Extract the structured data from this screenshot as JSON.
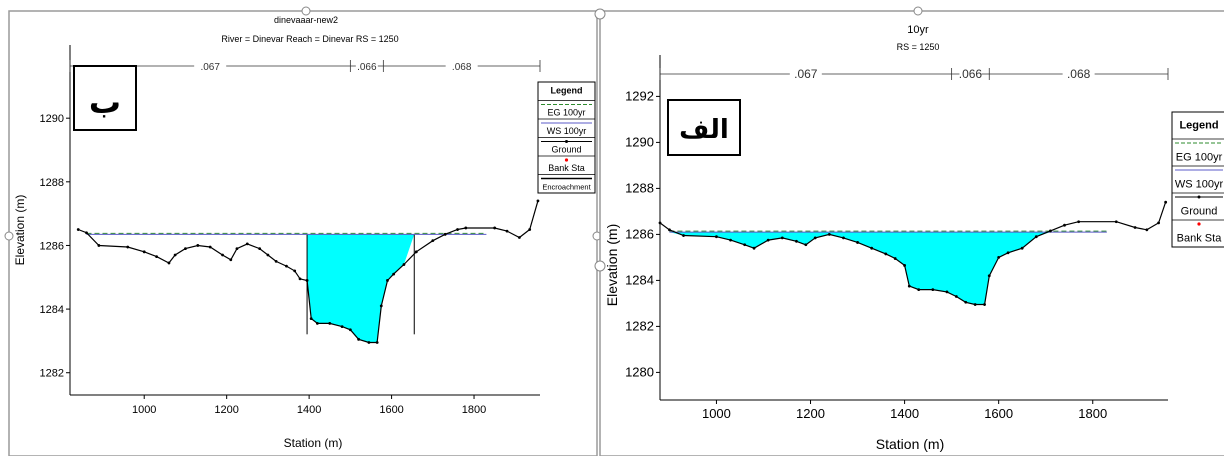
{
  "colors": {
    "water": "#00ffff",
    "ground": "#000000",
    "eg": "#2e8b2e",
    "ws": "#5b5bc8",
    "bank": "#ff0000",
    "frame": "#9a9a9a"
  },
  "chart_data": [
    {
      "type": "area",
      "panel_label": "ب",
      "title_lines": [
        "dinevaaar-new2",
        "River = Dinevar   Reach = Dinevar     RS = 1250"
      ],
      "xlabel": "Station (m)",
      "ylabel": "Elevation (m)",
      "xlim": [
        820,
        1960
      ],
      "ylim": [
        1281.3,
        1292.3
      ],
      "x_ticks": [
        1000,
        1200,
        1400,
        1600,
        1800
      ],
      "y_ticks": [
        1282,
        1284,
        1286,
        1288,
        1290
      ],
      "manning_labels": [
        ".067",
        ".066",
        ".068"
      ],
      "manning_breaks": [
        1500,
        1580
      ],
      "legend_title": "Legend",
      "legend_items": [
        "EG 100yr",
        "WS 100yr",
        "Ground",
        "Bank Sta",
        "Encroachment"
      ],
      "water_surface": 1286.35,
      "encroachment": [
        1395,
        1655
      ],
      "ground": [
        [
          840,
          1286.5
        ],
        [
          860,
          1286.4
        ],
        [
          890,
          1286.0
        ],
        [
          960,
          1285.95
        ],
        [
          1000,
          1285.8
        ],
        [
          1030,
          1285.65
        ],
        [
          1060,
          1285.45
        ],
        [
          1075,
          1285.7
        ],
        [
          1100,
          1285.9
        ],
        [
          1130,
          1286.0
        ],
        [
          1160,
          1285.95
        ],
        [
          1190,
          1285.7
        ],
        [
          1210,
          1285.55
        ],
        [
          1225,
          1285.9
        ],
        [
          1250,
          1286.05
        ],
        [
          1280,
          1285.9
        ],
        [
          1300,
          1285.7
        ],
        [
          1320,
          1285.5
        ],
        [
          1345,
          1285.35
        ],
        [
          1365,
          1285.2
        ],
        [
          1378,
          1284.95
        ],
        [
          1395,
          1284.9
        ],
        [
          1405,
          1283.7
        ],
        [
          1420,
          1283.55
        ],
        [
          1450,
          1283.55
        ],
        [
          1480,
          1283.45
        ],
        [
          1500,
          1283.35
        ],
        [
          1520,
          1283.05
        ],
        [
          1545,
          1282.95
        ],
        [
          1565,
          1282.95
        ],
        [
          1575,
          1284.1
        ],
        [
          1590,
          1284.9
        ],
        [
          1605,
          1285.1
        ],
        [
          1630,
          1285.4
        ],
        [
          1660,
          1285.8
        ],
        [
          1700,
          1286.15
        ],
        [
          1730,
          1286.35
        ],
        [
          1760,
          1286.5
        ],
        [
          1780,
          1286.55
        ],
        [
          1850,
          1286.55
        ],
        [
          1880,
          1286.45
        ],
        [
          1910,
          1286.25
        ],
        [
          1935,
          1286.5
        ],
        [
          1955,
          1287.4
        ]
      ]
    },
    {
      "type": "area",
      "panel_label": "الف",
      "title_lines": [
        "10yr",
        "RS = 1250"
      ],
      "xlabel": "Station (m)",
      "ylabel": "Elevation (m)",
      "xlim": [
        880,
        1960
      ],
      "ylim": [
        1278.8,
        1293.8
      ],
      "x_ticks": [
        1000,
        1200,
        1400,
        1600,
        1800
      ],
      "y_ticks": [
        1280,
        1282,
        1284,
        1286,
        1288,
        1290,
        1292
      ],
      "manning_labels": [
        ".067",
        ".066",
        ".068"
      ],
      "manning_breaks": [
        1500,
        1580
      ],
      "legend_title": "Legend",
      "legend_items": [
        "EG 100yr",
        "WS 100yr",
        "Ground",
        "Bank Sta"
      ],
      "water_surface": 1286.1,
      "ground": [
        [
          880,
          1286.5
        ],
        [
          900,
          1286.2
        ],
        [
          930,
          1285.95
        ],
        [
          1000,
          1285.9
        ],
        [
          1030,
          1285.75
        ],
        [
          1060,
          1285.55
        ],
        [
          1080,
          1285.4
        ],
        [
          1110,
          1285.75
        ],
        [
          1140,
          1285.85
        ],
        [
          1170,
          1285.7
        ],
        [
          1190,
          1285.55
        ],
        [
          1210,
          1285.85
        ],
        [
          1240,
          1286.0
        ],
        [
          1270,
          1285.85
        ],
        [
          1300,
          1285.65
        ],
        [
          1330,
          1285.4
        ],
        [
          1360,
          1285.15
        ],
        [
          1380,
          1284.95
        ],
        [
          1400,
          1284.65
        ],
        [
          1410,
          1283.75
        ],
        [
          1430,
          1283.6
        ],
        [
          1460,
          1283.6
        ],
        [
          1490,
          1283.5
        ],
        [
          1510,
          1283.3
        ],
        [
          1530,
          1283.05
        ],
        [
          1550,
          1282.95
        ],
        [
          1570,
          1282.95
        ],
        [
          1580,
          1284.2
        ],
        [
          1600,
          1285.0
        ],
        [
          1620,
          1285.2
        ],
        [
          1650,
          1285.4
        ],
        [
          1680,
          1285.9
        ],
        [
          1710,
          1286.15
        ],
        [
          1740,
          1286.4
        ],
        [
          1770,
          1286.55
        ],
        [
          1850,
          1286.55
        ],
        [
          1890,
          1286.3
        ],
        [
          1915,
          1286.2
        ],
        [
          1940,
          1286.5
        ],
        [
          1955,
          1287.4
        ]
      ]
    }
  ]
}
